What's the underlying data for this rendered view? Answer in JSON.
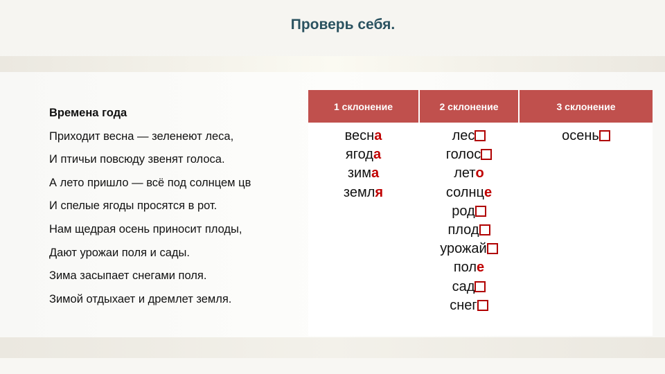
{
  "title": "Проверь себя.",
  "poem": {
    "heading": "Времена года",
    "lines": [
      "Приходит  весна — зеленеют леса,",
      "И птичьи  повсюду звенят голоса.",
      "А лето пришло  — всё под солнцем цв",
      "И спелые  ягоды просятся  в рот.",
      "Нам  щедрая  осень приносит  плоды,",
      "Дают урожаи поля  и сады.",
      "Зима  засыпает снегами поля.",
      "Зимой  отдыхает и дремлет  земля."
    ]
  },
  "table": {
    "headers": [
      "1 склонение",
      "2 склонение",
      "3 склонение"
    ],
    "header_color": "#c0504d",
    "ending_color": "#c00000",
    "columns": [
      [
        {
          "stem": "весн",
          "ending": "а"
        },
        {
          "stem": "ягод",
          "ending": "а"
        },
        {
          "stem": "зим",
          "ending": "а"
        },
        {
          "stem": "земл",
          "ending": "я"
        }
      ],
      [
        {
          "stem": "лес",
          "ending": ""
        },
        {
          "stem": "голос",
          "ending": ""
        },
        {
          "stem": "лет",
          "ending": "о"
        },
        {
          "stem": "солнц",
          "ending": "е"
        },
        {
          "stem": "род",
          "ending": ""
        },
        {
          "stem": "плод",
          "ending": ""
        },
        {
          "stem": "урожай",
          "ending": ""
        },
        {
          "stem": "пол",
          "ending": "е"
        },
        {
          "stem": "сад",
          "ending": ""
        },
        {
          "stem": "снег",
          "ending": ""
        }
      ],
      [
        {
          "stem": "осень",
          "ending": ""
        }
      ]
    ]
  }
}
